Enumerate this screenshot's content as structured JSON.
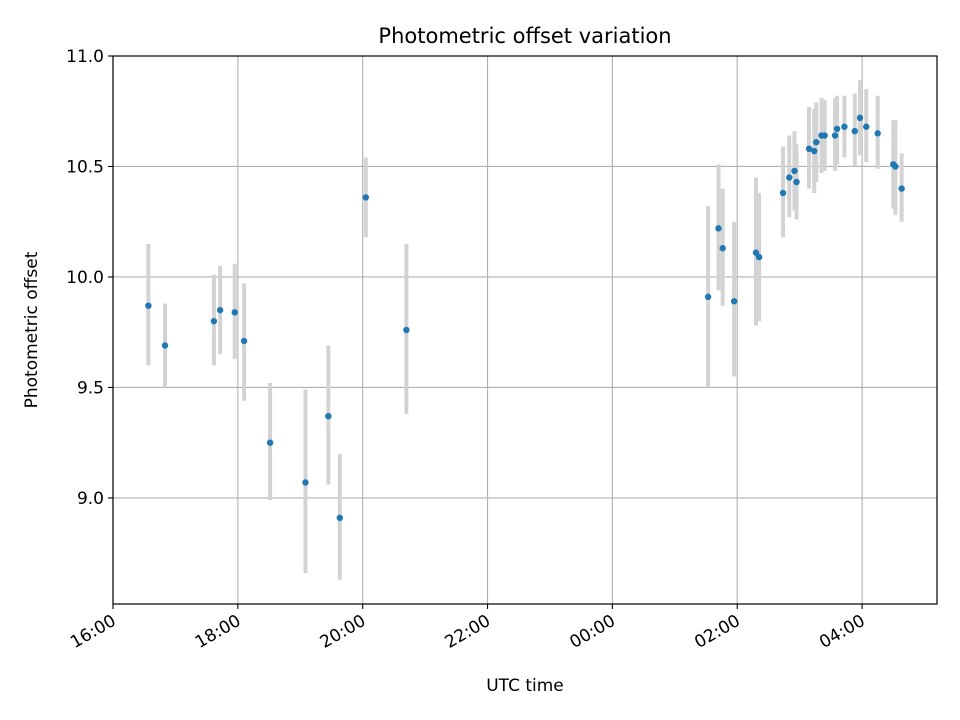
{
  "chart_data": {
    "type": "scatter",
    "title": "Photometric offset variation",
    "xlabel": "UTC time",
    "ylabel": "Photometric offset",
    "x_start": "2000-01-01T16:00",
    "x_end": "2000-01-02T05:12",
    "ylim": [
      8.52,
      11.0
    ],
    "grid": true,
    "x_ticks": [
      {
        "at": "2000-01-01T16:00",
        "label": "16:00"
      },
      {
        "at": "2000-01-01T18:00",
        "label": "18:00"
      },
      {
        "at": "2000-01-01T20:00",
        "label": "20:00"
      },
      {
        "at": "2000-01-01T22:00",
        "label": "22:00"
      },
      {
        "at": "2000-01-02T00:00",
        "label": "00:00"
      },
      {
        "at": "2000-01-02T02:00",
        "label": "02:00"
      },
      {
        "at": "2000-01-02T04:00",
        "label": "04:00"
      }
    ],
    "y_ticks": [
      {
        "value": 9.0,
        "label": "9.0"
      },
      {
        "value": 9.5,
        "label": "9.5"
      },
      {
        "value": 10.0,
        "label": "10.0"
      },
      {
        "value": 10.5,
        "label": "10.5"
      },
      {
        "value": 11.0,
        "label": "11.0"
      }
    ],
    "point_color": "#1f77b4",
    "errorbar_color": "#d3d3d3",
    "points": [
      {
        "t": "2000-01-01T16:34",
        "y": 9.87,
        "lo": 9.6,
        "hi": 10.15
      },
      {
        "t": "2000-01-01T16:50",
        "y": 9.69,
        "lo": 9.5,
        "hi": 9.88
      },
      {
        "t": "2000-01-01T17:37",
        "y": 9.8,
        "lo": 9.6,
        "hi": 10.01
      },
      {
        "t": "2000-01-01T17:43",
        "y": 9.85,
        "lo": 9.65,
        "hi": 10.05
      },
      {
        "t": "2000-01-01T17:57",
        "y": 9.84,
        "lo": 9.63,
        "hi": 10.06
      },
      {
        "t": "2000-01-01T18:06",
        "y": 9.71,
        "lo": 9.44,
        "hi": 9.97
      },
      {
        "t": "2000-01-01T18:31",
        "y": 9.25,
        "lo": 8.99,
        "hi": 9.52
      },
      {
        "t": "2000-01-01T19:05",
        "y": 9.07,
        "lo": 8.66,
        "hi": 9.49
      },
      {
        "t": "2000-01-01T19:27",
        "y": 9.37,
        "lo": 9.06,
        "hi": 9.69
      },
      {
        "t": "2000-01-01T19:38",
        "y": 8.91,
        "lo": 8.63,
        "hi": 9.2
      },
      {
        "t": "2000-01-01T20:03",
        "y": 10.36,
        "lo": 10.18,
        "hi": 10.54
      },
      {
        "t": "2000-01-01T20:42",
        "y": 9.76,
        "lo": 9.38,
        "hi": 10.15
      },
      {
        "t": "2000-01-02T01:32",
        "y": 9.91,
        "lo": 9.5,
        "hi": 10.32
      },
      {
        "t": "2000-01-02T01:42",
        "y": 10.22,
        "lo": 9.94,
        "hi": 10.51
      },
      {
        "t": "2000-01-02T01:46",
        "y": 10.13,
        "lo": 9.87,
        "hi": 10.4
      },
      {
        "t": "2000-01-02T01:57",
        "y": 9.89,
        "lo": 9.55,
        "hi": 10.25
      },
      {
        "t": "2000-01-02T02:18",
        "y": 10.11,
        "lo": 9.78,
        "hi": 10.45
      },
      {
        "t": "2000-01-02T02:21",
        "y": 10.09,
        "lo": 9.8,
        "hi": 10.38
      },
      {
        "t": "2000-01-02T02:44",
        "y": 10.38,
        "lo": 10.18,
        "hi": 10.59
      },
      {
        "t": "2000-01-02T02:50",
        "y": 10.45,
        "lo": 10.27,
        "hi": 10.64
      },
      {
        "t": "2000-01-02T02:55",
        "y": 10.48,
        "lo": 10.3,
        "hi": 10.66
      },
      {
        "t": "2000-01-02T02:57",
        "y": 10.43,
        "lo": 10.26,
        "hi": 10.6
      },
      {
        "t": "2000-01-02T03:09",
        "y": 10.58,
        "lo": 10.4,
        "hi": 10.77
      },
      {
        "t": "2000-01-02T03:14",
        "y": 10.57,
        "lo": 10.38,
        "hi": 10.76
      },
      {
        "t": "2000-01-02T03:16",
        "y": 10.61,
        "lo": 10.43,
        "hi": 10.79
      },
      {
        "t": "2000-01-02T03:21",
        "y": 10.64,
        "lo": 10.47,
        "hi": 10.81
      },
      {
        "t": "2000-01-02T03:24",
        "y": 10.64,
        "lo": 10.48,
        "hi": 10.8
      },
      {
        "t": "2000-01-02T03:34",
        "y": 10.64,
        "lo": 10.48,
        "hi": 10.81
      },
      {
        "t": "2000-01-02T03:36",
        "y": 10.67,
        "lo": 10.51,
        "hi": 10.82
      },
      {
        "t": "2000-01-02T03:43",
        "y": 10.68,
        "lo": 10.54,
        "hi": 10.82
      },
      {
        "t": "2000-01-02T03:53",
        "y": 10.66,
        "lo": 10.5,
        "hi": 10.83
      },
      {
        "t": "2000-01-02T03:58",
        "y": 10.72,
        "lo": 10.55,
        "hi": 10.89
      },
      {
        "t": "2000-01-02T04:04",
        "y": 10.68,
        "lo": 10.52,
        "hi": 10.85
      },
      {
        "t": "2000-01-02T04:15",
        "y": 10.65,
        "lo": 10.49,
        "hi": 10.82
      },
      {
        "t": "2000-01-02T04:30",
        "y": 10.51,
        "lo": 10.31,
        "hi": 10.71
      },
      {
        "t": "2000-01-02T04:32",
        "y": 10.5,
        "lo": 10.28,
        "hi": 10.71
      },
      {
        "t": "2000-01-02T04:38",
        "y": 10.4,
        "lo": 10.25,
        "hi": 10.56
      }
    ]
  }
}
